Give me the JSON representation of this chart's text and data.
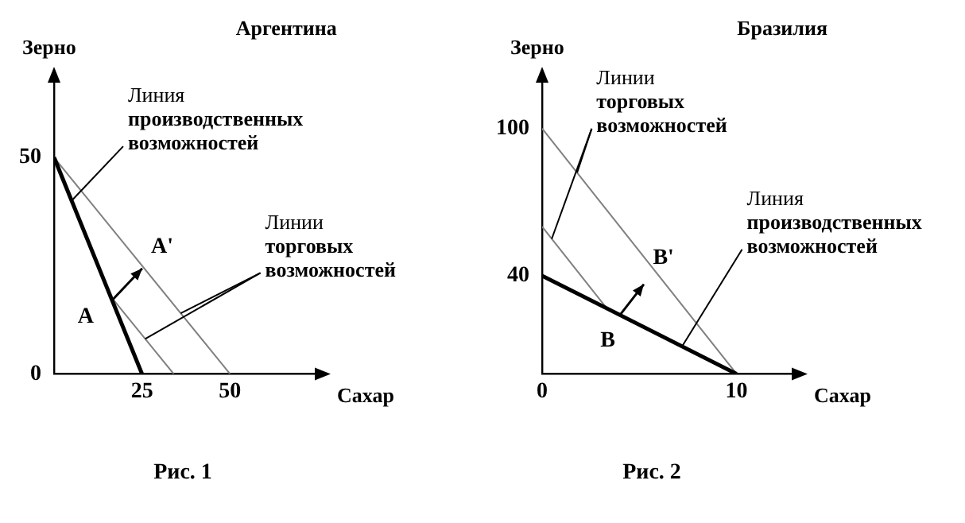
{
  "chart_data": [
    {
      "type": "line",
      "title": "Аргентина",
      "xlabel": "Сахар",
      "ylabel": "Зерно",
      "xlim": [
        0,
        75
      ],
      "ylim": [
        0,
        68
      ],
      "xticks": [
        25,
        50
      ],
      "yticks": [
        0,
        50
      ],
      "grid": false,
      "legend": false,
      "marker": "none",
      "series": [
        {
          "x": [
            0,
            25
          ],
          "values": [
            50,
            0
          ],
          "color": "#000000"
        },
        {
          "x": [
            0,
            50
          ],
          "values": [
            50,
            0
          ],
          "color": "#808080"
        },
        {
          "x": [
            16,
            34
          ],
          "values": [
            18,
            0
          ],
          "color": "#808080"
        }
      ],
      "annotations": [
        "A",
        "A'",
        {
          "text": "Линия производственных возможностей",
          "x": 5,
          "y": 40
        },
        {
          "text": "Линии торговых возможностей",
          "x": 36,
          "y": 14
        },
        "Рис. 1"
      ]
    },
    {
      "type": "line",
      "title": "Бразилия",
      "xlabel": "Сахар",
      "ylabel": "Зерно",
      "xlim": [
        0,
        13
      ],
      "ylim": [
        0,
        120
      ],
      "xticks": [
        0,
        10
      ],
      "yticks": [
        40,
        100
      ],
      "grid": false,
      "legend": false,
      "marker": "none",
      "series": [
        {
          "x": [
            0,
            10
          ],
          "values": [
            40,
            0
          ],
          "color": "#000000"
        },
        {
          "x": [
            0,
            10
          ],
          "values": [
            100,
            0
          ],
          "color": "#808080"
        },
        {
          "x": [
            0,
            3.3
          ],
          "values": [
            60,
            27
          ],
          "color": "#808080"
        }
      ],
      "annotations": [
        "B",
        "B'",
        {
          "text": "Линии торговых возможностей",
          "x": 1.8,
          "y": 82
        },
        {
          "text": "Линия производственных возможностей",
          "x": 7.2,
          "y": 11.2
        },
        "Рис. 2"
      ]
    }
  ]
}
